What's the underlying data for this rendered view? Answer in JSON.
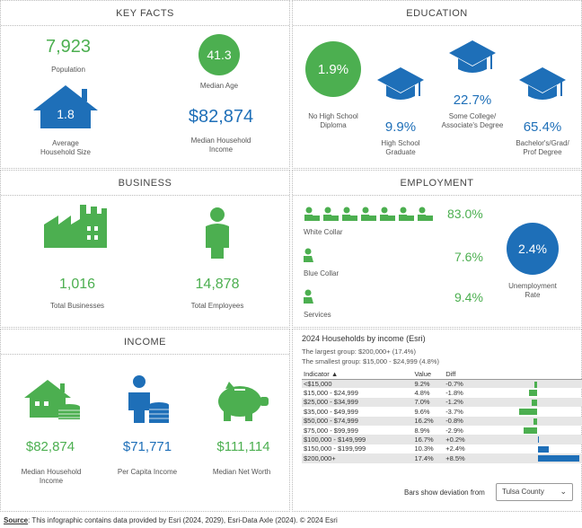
{
  "key_facts": {
    "title": "KEY FACTS",
    "population": "7,923",
    "population_label": "Population",
    "median_age": "41.3",
    "median_age_label": "Median Age",
    "household_size": "1.8",
    "household_size_label_1": "Average",
    "household_size_label_2": "Household Size",
    "median_income": "$82,874",
    "median_income_label_1": "Median Household",
    "median_income_label_2": "Income"
  },
  "education": {
    "title": "EDUCATION",
    "no_hs": "1.9%",
    "no_hs_label_1": "No High School",
    "no_hs_label_2": "Diploma",
    "hs": "9.9%",
    "hs_label_1": "High School",
    "hs_label_2": "Graduate",
    "college": "22.7%",
    "college_label_1": "Some College/",
    "college_label_2": "Associate's Degree",
    "bachelor": "65.4%",
    "bachelor_label_1": "Bachelor's/Grad/",
    "bachelor_label_2": "Prof Degree"
  },
  "business": {
    "title": "BUSINESS",
    "businesses": "1,016",
    "businesses_label": "Total Businesses",
    "employees": "14,878",
    "employees_label": "Total Employees"
  },
  "employment": {
    "title": "EMPLOYMENT",
    "white_collar": "83.0%",
    "white_collar_label": "White Collar",
    "blue_collar": "7.6%",
    "blue_collar_label": "Blue Collar",
    "services": "9.4%",
    "services_label": "Services",
    "unemployment": "2.4%",
    "unemployment_label_1": "Unemployment",
    "unemployment_label_2": "Rate"
  },
  "income": {
    "title": "INCOME",
    "median_household": "$82,874",
    "median_household_label_1": "Median Household",
    "median_household_label_2": "Income",
    "per_capita": "$71,771",
    "per_capita_label": "Per Capita Income",
    "net_worth": "$111,114",
    "net_worth_label": "Median Net Worth"
  },
  "households": {
    "title": "2024 Households by income (Esri)",
    "largest": "The largest group: $200,000+ (17.4%)",
    "smallest": "The smallest group: $15,000 - $24,999 (4.8%)",
    "col_indicator": "Indicator ▲",
    "col_value": "Value",
    "col_diff": "Diff",
    "rows": [
      {
        "indicator": "<$15,000",
        "value": "9.2%",
        "diff": "-0.7%",
        "d": -0.7
      },
      {
        "indicator": "$15,000 - $24,999",
        "value": "4.8%",
        "diff": "-1.8%",
        "d": -1.8
      },
      {
        "indicator": "$25,000 - $34,999",
        "value": "7.0%",
        "diff": "-1.2%",
        "d": -1.2
      },
      {
        "indicator": "$35,000 - $49,999",
        "value": "9.6%",
        "diff": "-3.7%",
        "d": -3.7
      },
      {
        "indicator": "$50,000 - $74,999",
        "value": "16.2%",
        "diff": "-0.8%",
        "d": -0.8
      },
      {
        "indicator": "$75,000 - $99,999",
        "value": "8.9%",
        "diff": "-2.9%",
        "d": -2.9
      },
      {
        "indicator": "$100,000 - $149,999",
        "value": "16.7%",
        "diff": "+0.2%",
        "d": 0.2
      },
      {
        "indicator": "$150,000 - $199,999",
        "value": "10.3%",
        "diff": "+2.4%",
        "d": 2.4
      },
      {
        "indicator": "$200,000+",
        "value": "17.4%",
        "diff": "+8.5%",
        "d": 8.5
      }
    ],
    "bars_label": "Bars show deviation from",
    "compare_select": "Tulsa County",
    "neg_color": "#4caf50",
    "pos_color": "#1e6fb8"
  },
  "footer": {
    "source_label": "Source",
    "source_text": ": This infographic contains data provided by Esri (2024, 2029), Esri-Data Axle (2024). © 2024 Esri"
  }
}
